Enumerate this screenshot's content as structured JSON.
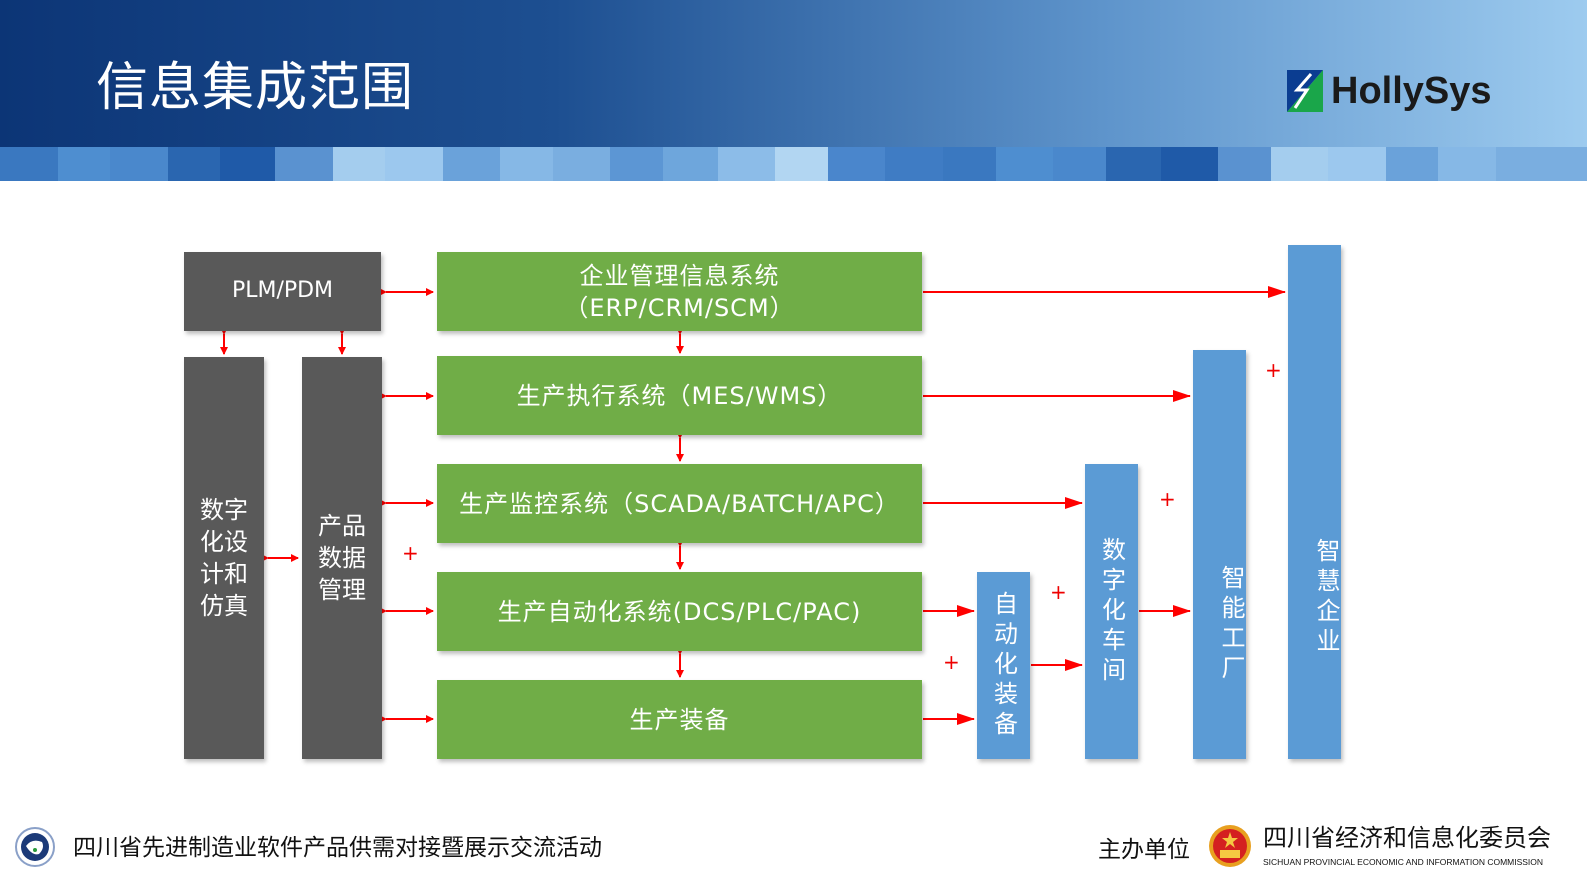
{
  "header": {
    "title": "信息集成范围",
    "logo_text": "HollySys"
  },
  "diagram": {
    "plm": "PLM/PDM",
    "erp_line1": "企业管理信息系统",
    "erp_line2": "（ERP/CRM/SCM）",
    "mes": "生产执行系统（MES/WMS）",
    "scada": "生产监控系统（SCADA/BATCH/APC）",
    "dcs": "生产自动化系统(DCS/PLC/PAC)",
    "equipment": "生产装备",
    "digital_design": "数字\n化设\n计和\n仿真",
    "product_data": "产品\n数据\n管理",
    "auto_equipment": "自动化装备",
    "digital_workshop": "数字化车间",
    "smart_factory": "智能工厂",
    "smart_enterprise": "智慧企业",
    "plus": "+",
    "colors": {
      "gray": "#595959",
      "green": "#70ad47",
      "blue": "#5b9bd5",
      "arrow": "#ff0000"
    }
  },
  "footer": {
    "event": "四川省先进制造业软件产品供需对接暨展示交流活动",
    "host_label": "主办单位",
    "org_cn": "四川省经济和信息化委员会",
    "org_en": "SICHUAN PROVINCIAL ECONOMIC AND INFORMATION COMMISSION"
  }
}
